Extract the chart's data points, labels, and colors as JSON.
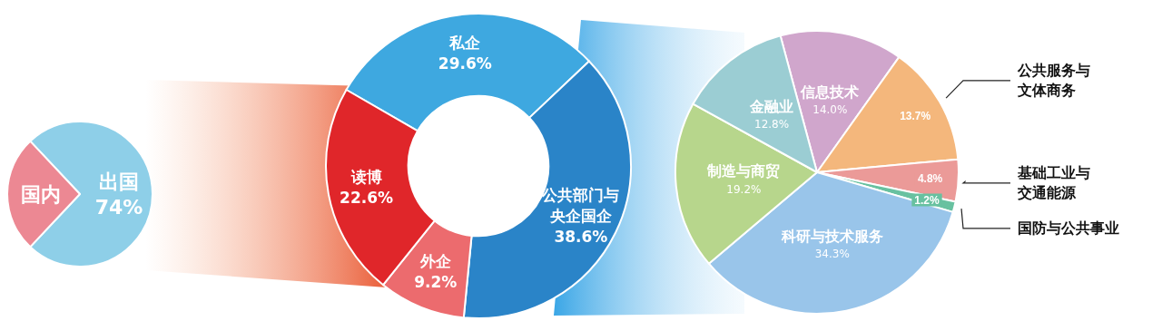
{
  "chart_data": [
    {
      "type": "pie",
      "categories": [
        "出国",
        "国内"
      ],
      "values": [
        74,
        26
      ],
      "colors": [
        "#8ecfe8",
        "#ec8893"
      ],
      "value_labels": [
        "74%",
        null
      ]
    },
    {
      "type": "donut",
      "categories": [
        "私企",
        "公共部门与央企国企",
        "外企",
        "读博"
      ],
      "values": [
        29.6,
        38.6,
        9.2,
        22.6
      ],
      "colors": [
        "#3ea8e0",
        "#2a84c8",
        "#ec6b6e",
        "#e0262a"
      ],
      "value_labels": [
        "29.6%",
        "38.6%",
        "9.2%",
        "22.6%"
      ]
    },
    {
      "type": "pie",
      "categories": [
        "信息技术",
        "公共服务与文体商务",
        "基础工业与交通能源",
        "国防与公共事业",
        "科研与技术服务",
        "制造与商贸",
        "金融业"
      ],
      "values": [
        14.0,
        13.7,
        4.8,
        1.2,
        34.3,
        19.2,
        12.8
      ],
      "colors": [
        "#d0a6cc",
        "#f4b77c",
        "#eb9a98",
        "#68c1a0",
        "#99c5ea",
        "#b7d68c",
        "#9bcdd3"
      ],
      "value_labels": [
        "14.0%",
        "13.7%",
        "4.8%",
        "1.2%",
        "34.3%",
        "19.2%",
        "12.8%"
      ]
    }
  ]
}
